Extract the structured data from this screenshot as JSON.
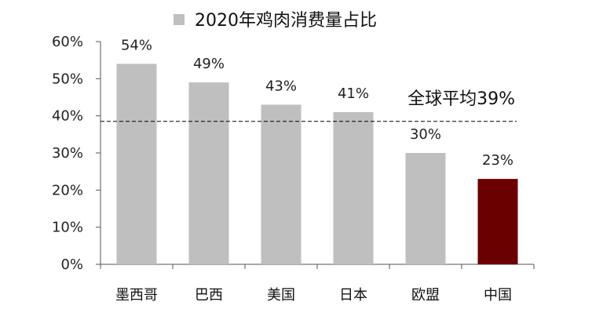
{
  "chart_data": {
    "type": "bar",
    "legend_label": "2020年鸡肉消费量占比",
    "categories": [
      "墨西哥",
      "巴西",
      "美国",
      "日本",
      "欧盟",
      "中国"
    ],
    "values": [
      54,
      49,
      43,
      41,
      30,
      23
    ],
    "value_labels": [
      "54%",
      "49%",
      "43%",
      "41%",
      "30%",
      "23%"
    ],
    "ylim": [
      0,
      60
    ],
    "yticks": [
      0,
      10,
      20,
      30,
      40,
      50,
      60
    ],
    "ytick_labels": [
      "0%",
      "10%",
      "20%",
      "30%",
      "40%",
      "50%",
      "60%"
    ],
    "reference_line": {
      "value": 38.5,
      "label": "全球平均39%",
      "style": "dashed"
    },
    "grid": false,
    "legend_position": "top",
    "colors": {
      "default": "#bfbfbf",
      "highlight": "#6b0000"
    },
    "highlight_category": "中国"
  }
}
